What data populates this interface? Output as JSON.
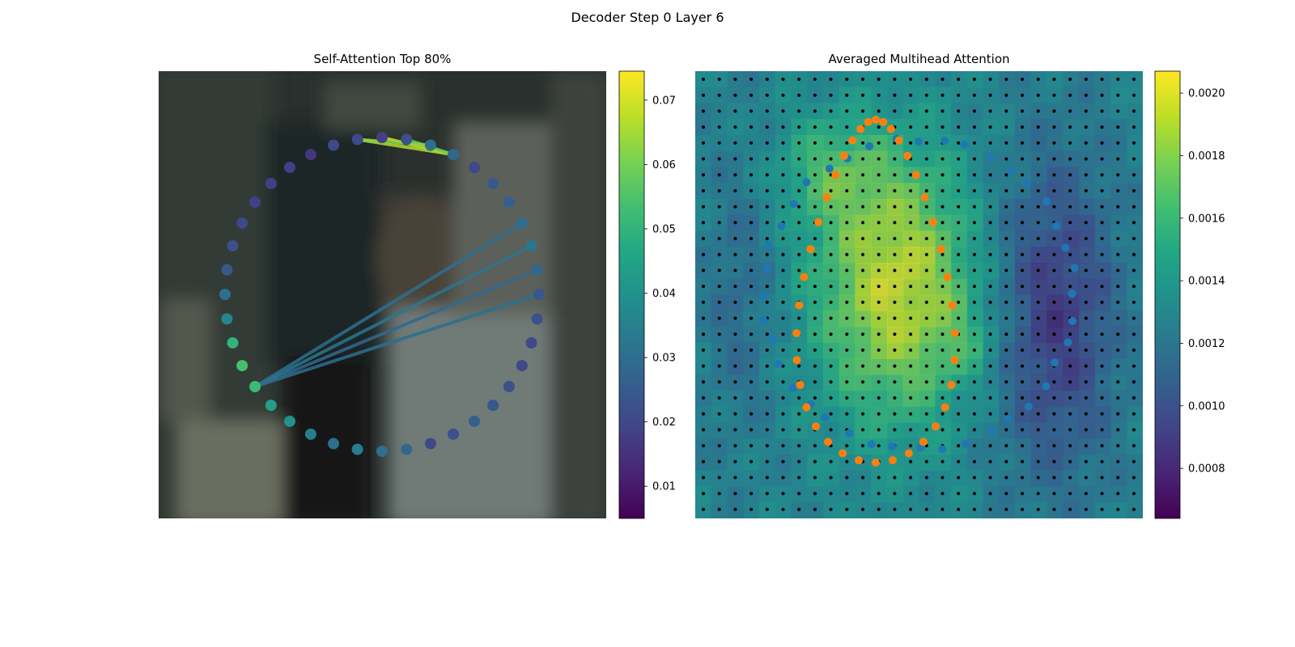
{
  "figure": {
    "suptitle": "Decoder Step 0 Layer 6"
  },
  "chart_data": [
    {
      "type": "scatter",
      "title": "Self-Attention Top 80%",
      "background": "blurred photo of a person in a white coat behind a window",
      "axes_visible": false,
      "points": {
        "count": 40,
        "shape": "circle",
        "values": [
          0.018,
          0.022,
          0.03,
          0.028,
          0.02,
          0.024,
          0.026,
          0.03,
          0.032,
          0.028,
          0.024,
          0.022,
          0.02,
          0.02,
          0.022,
          0.024,
          0.026,
          0.022,
          0.02,
          0.028,
          0.03,
          0.034,
          0.03,
          0.034,
          0.04,
          0.044,
          0.052,
          0.054,
          0.05,
          0.036,
          0.03,
          0.024,
          0.022,
          0.02,
          0.018,
          0.018,
          0.018,
          0.016,
          0.02,
          0.02
        ]
      },
      "edges": [
        {
          "from": 0,
          "to": 3,
          "value": 0.07
        },
        {
          "from": 39,
          "to": 3,
          "value": 0.066
        },
        {
          "from": 1,
          "to": 3,
          "value": 0.058
        },
        {
          "from": 39,
          "to": 2,
          "value": 0.062
        },
        {
          "from": 26,
          "to": 10,
          "value": 0.03
        },
        {
          "from": 26,
          "to": 9,
          "value": 0.028
        },
        {
          "from": 26,
          "to": 8,
          "value": 0.032
        },
        {
          "from": 26,
          "to": 7,
          "value": 0.03
        }
      ],
      "colorbar": {
        "colormap": "viridis",
        "range": [
          0.005,
          0.0745
        ],
        "ticks": [
          0.01,
          0.02,
          0.03,
          0.04,
          0.05,
          0.06,
          0.07
        ],
        "tick_labels": [
          "0.01",
          "0.02",
          "0.03",
          "0.04",
          "0.05",
          "0.06",
          "0.07"
        ]
      }
    },
    {
      "type": "heatmap",
      "title": "Averaged Multihead Attention",
      "grid": {
        "rows": 28,
        "cols": 28
      },
      "reference_points": {
        "color": "#000000"
      },
      "predicted_points": {
        "color": "#ff7f0e",
        "count": 38
      },
      "target_points": {
        "color": "#1f77b4",
        "count": 40
      },
      "colorbar": {
        "colormap": "viridis",
        "range": [
          0.00064,
          0.00207
        ],
        "ticks": [
          0.0008,
          0.001,
          0.0012,
          0.0014,
          0.0016,
          0.0018,
          0.002
        ],
        "tick_labels": [
          "0.0008",
          "0.0010",
          "0.0012",
          "0.0014",
          "0.0016",
          "0.0018",
          "0.0020"
        ]
      }
    }
  ]
}
